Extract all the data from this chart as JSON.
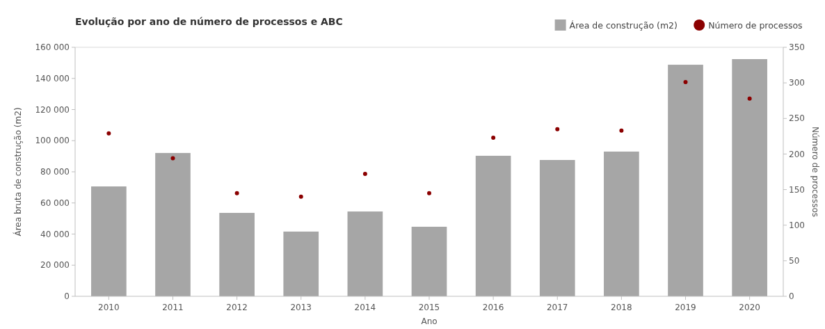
{
  "chart_data": {
    "type": "bar",
    "title": "Evolução por ano de número de processos e ABC",
    "xlabel": "Ano",
    "ylabel": "Área bruta de construção (m2)",
    "y2label": "Número de processos",
    "categories": [
      "2010",
      "2011",
      "2012",
      "2013",
      "2014",
      "2015",
      "2016",
      "2017",
      "2018",
      "2019",
      "2020"
    ],
    "series": [
      {
        "name": "Área de construção (m2)",
        "color": "#a6a6a6",
        "values": [
          70600,
          92100,
          53600,
          41600,
          54500,
          44700,
          90300,
          87600,
          93000,
          148800,
          152400
        ]
      },
      {
        "name": "Número de processos",
        "type": "scatter",
        "axis": "y2",
        "color": "#8b0000",
        "values": [
          229,
          194,
          145,
          140,
          172,
          145,
          223,
          235,
          233,
          301,
          278
        ]
      }
    ],
    "ylim": [
      0,
      160000
    ],
    "yticks": [
      {
        "value": 0,
        "label": "0"
      },
      {
        "value": 20000,
        "label": "20 000"
      },
      {
        "value": 40000,
        "label": "40 000"
      },
      {
        "value": 60000,
        "label": "60 000"
      },
      {
        "value": 80000,
        "label": "80 000"
      },
      {
        "value": 100000,
        "label": "100 000"
      },
      {
        "value": 120000,
        "label": "120 000"
      },
      {
        "value": 140000,
        "label": "140 000"
      },
      {
        "value": 160000,
        "label": "160 000"
      }
    ],
    "y2lim": [
      0,
      350
    ],
    "y2ticks": [
      0,
      50,
      100,
      150,
      200,
      250,
      300,
      350
    ],
    "legend": "top right",
    "marker": "circle"
  }
}
